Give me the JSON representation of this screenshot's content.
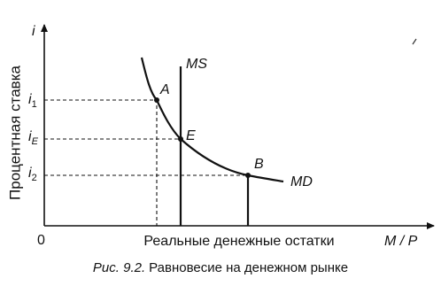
{
  "axes": {
    "y_symbol": "i",
    "y_title": "Процентная ставка",
    "origin": "0",
    "x_title": "Реальные денежные остатки",
    "x_symbol": "M / P"
  },
  "ticks": [
    {
      "main": "i",
      "sub": "1"
    },
    {
      "main": "i",
      "sub": "E"
    },
    {
      "main": "i",
      "sub": "2"
    }
  ],
  "curves": [
    {
      "label": "MS"
    },
    {
      "label": "MD"
    }
  ],
  "points": [
    {
      "label": "A"
    },
    {
      "label": "E"
    },
    {
      "label": "B"
    }
  ],
  "caption": {
    "number": "Рис. 9.2.",
    "text": "Равновесие на денежном рынке"
  }
}
